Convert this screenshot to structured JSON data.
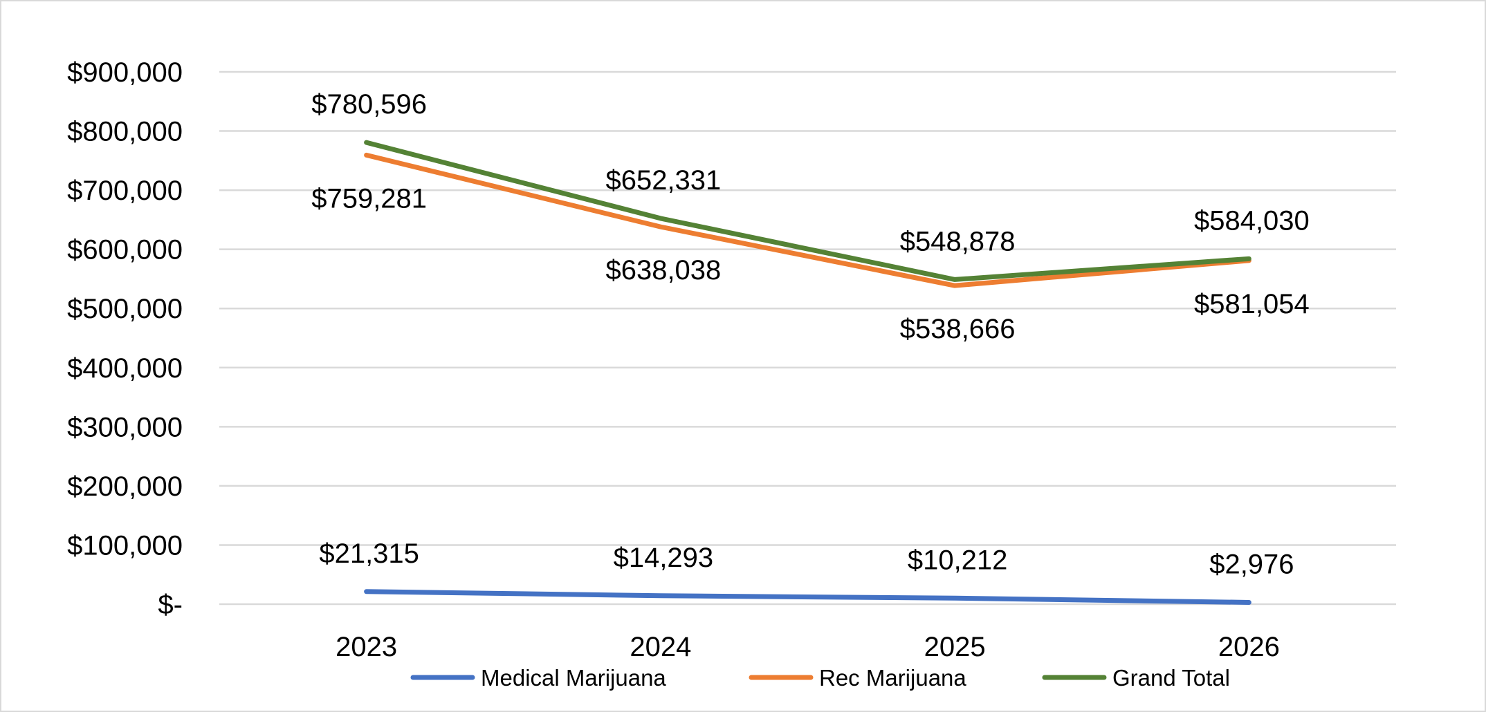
{
  "chart_data": {
    "type": "line",
    "title": "",
    "xlabel": "",
    "ylabel": "",
    "categories": [
      "2023",
      "2024",
      "2025",
      "2026"
    ],
    "ylim": [
      0,
      900000
    ],
    "y_ticks": [
      0,
      100000,
      200000,
      300000,
      400000,
      500000,
      600000,
      700000,
      800000,
      900000
    ],
    "y_tick_labels": [
      "$-",
      "$100,000",
      "$200,000",
      "$300,000",
      "$400,000",
      "$500,000",
      "$600,000",
      "$700,000",
      "$800,000",
      "$900,000"
    ],
    "grid": true,
    "legend_position": "bottom",
    "series": [
      {
        "name": "Medical Marijuana",
        "color": "#4472c4",
        "values": [
          21315,
          14293,
          10212,
          2976
        ],
        "labels": [
          "$21,315",
          "$14,293",
          "$10,212",
          "$2,976"
        ],
        "label_side": "above"
      },
      {
        "name": "Rec Marijuana",
        "color": "#ed7d31",
        "values": [
          759281,
          638038,
          538666,
          581054
        ],
        "labels": [
          "$759,281",
          "$638,038",
          "$538,666",
          "$581,054"
        ],
        "label_side": "below"
      },
      {
        "name": "Grand Total",
        "color": "#548235",
        "values": [
          780596,
          652331,
          548878,
          584030
        ],
        "labels": [
          "$780,596",
          "$652,331",
          "$548,878",
          "$584,030"
        ],
        "label_side": "above"
      }
    ]
  }
}
